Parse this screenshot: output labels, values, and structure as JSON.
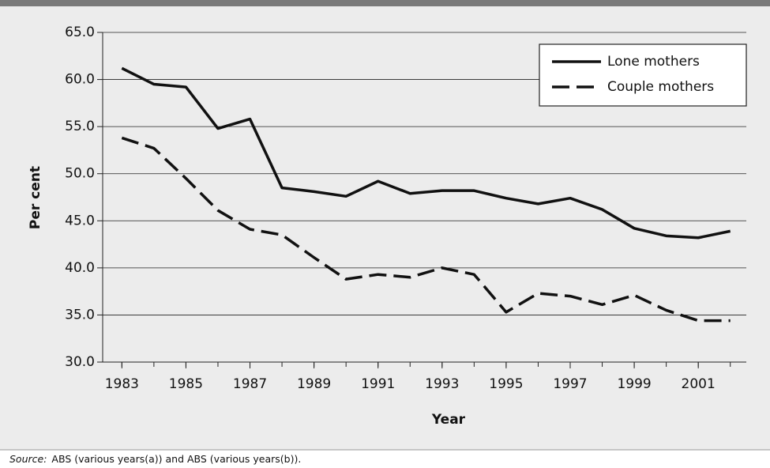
{
  "chart_data": {
    "type": "line",
    "x_label": "Year",
    "y_label": "Per cent",
    "x": [
      1983,
      1984,
      1985,
      1986,
      1987,
      1988,
      1989,
      1990,
      1991,
      1992,
      1993,
      1994,
      1995,
      1996,
      1997,
      1998,
      1999,
      2000,
      2001,
      2002
    ],
    "series": [
      {
        "name": "Lone mothers",
        "color": "#111111",
        "line_style": "solid",
        "values": [
          61.2,
          59.5,
          59.2,
          54.8,
          55.8,
          48.5,
          48.1,
          47.6,
          49.2,
          47.9,
          48.2,
          48.2,
          47.4,
          46.8,
          47.4,
          46.2,
          44.2,
          43.4,
          43.2,
          43.9
        ]
      },
      {
        "name": "Couple mothers",
        "color": "#111111",
        "line_style": "dashed",
        "values": [
          53.8,
          52.7,
          49.5,
          46.1,
          44.1,
          43.5,
          41.1,
          38.8,
          39.3,
          39.0,
          40.0,
          39.3,
          35.3,
          37.3,
          37.0,
          36.1,
          37.1,
          35.5,
          34.4,
          34.4
        ]
      }
    ],
    "xlim": [
      1982.4,
      2002.5
    ],
    "xticks": [
      1983,
      1985,
      1987,
      1989,
      1991,
      1993,
      1995,
      1997,
      1999,
      2001
    ],
    "ylim": [
      30,
      65
    ],
    "yticks": [
      {
        "value": 30,
        "label": "30.0"
      },
      {
        "value": 35,
        "label": "35.0"
      },
      {
        "value": 40,
        "label": "40.0"
      },
      {
        "value": 45,
        "label": "45.0"
      },
      {
        "value": 50,
        "label": "50.0"
      },
      {
        "value": 55,
        "label": "55.0"
      },
      {
        "value": 60,
        "label": "60.0"
      },
      {
        "value": 65,
        "label": "65.0"
      }
    ],
    "grid": true,
    "legend": "upper right",
    "source_label": "Source:",
    "source_text": "ABS (various years(a)) and ABS (various years(b))."
  }
}
